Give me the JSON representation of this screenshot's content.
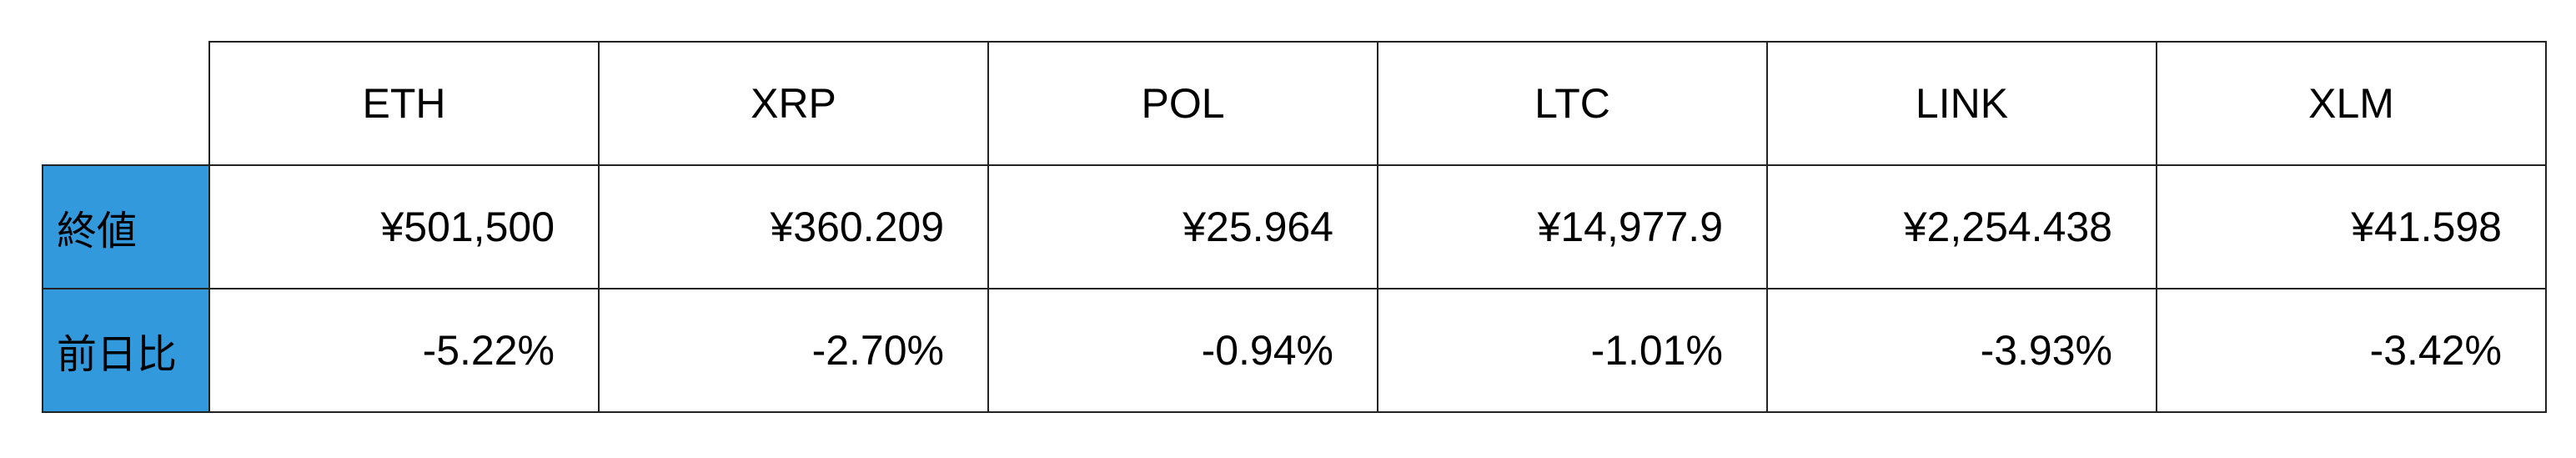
{
  "columns": [
    "ETH",
    "XRP",
    "POL",
    "LTC",
    "LINK",
    "XLM"
  ],
  "rows": [
    {
      "label": "終値",
      "values": [
        "¥501,500",
        "¥360.209",
        "¥25.964",
        "¥14,977.9",
        "¥2,254.438",
        "¥41.598"
      ]
    },
    {
      "label": "前日比",
      "values": [
        "-5.22%",
        "-2.70%",
        "-0.94%",
        "-1.01%",
        "-3.93%",
        "-3.42%"
      ]
    }
  ],
  "colors": {
    "row_label_bg": "#3399dd",
    "border": "#222222"
  }
}
